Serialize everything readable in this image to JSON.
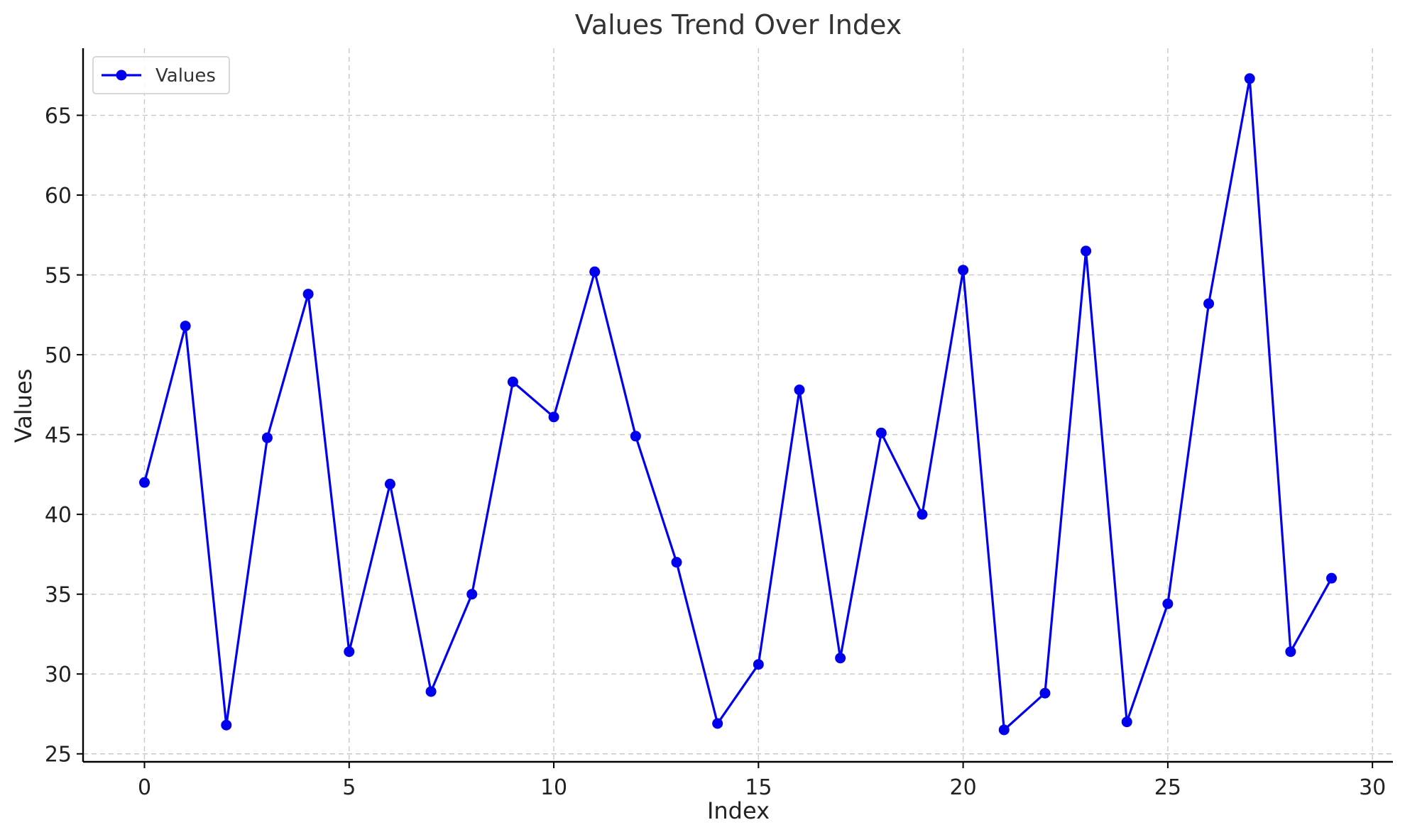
{
  "chart_data": {
    "type": "line",
    "title": "Values Trend Over Index",
    "xlabel": "Index",
    "ylabel": "Values",
    "xlim": [
      -1.5,
      30.5
    ],
    "ylim": [
      24.5,
      69.2
    ],
    "x_ticks": [
      0,
      5,
      10,
      15,
      20,
      25,
      30
    ],
    "y_ticks": [
      25,
      30,
      35,
      40,
      45,
      50,
      55,
      60,
      65
    ],
    "grid": true,
    "legend": {
      "placement": "top-left"
    },
    "series": [
      {
        "name": "Values",
        "color": "#0000ee",
        "marker": "circle",
        "x": [
          0,
          1,
          2,
          3,
          4,
          5,
          6,
          7,
          8,
          9,
          10,
          11,
          12,
          13,
          14,
          15,
          16,
          17,
          18,
          19,
          20,
          21,
          22,
          23,
          24,
          25,
          26,
          27,
          28,
          29
        ],
        "y": [
          42.0,
          51.8,
          26.8,
          44.8,
          53.8,
          31.4,
          41.9,
          28.9,
          35.0,
          48.3,
          46.1,
          55.2,
          44.9,
          37.0,
          26.9,
          30.6,
          47.8,
          31.0,
          45.1,
          40.0,
          55.3,
          26.5,
          28.8,
          56.5,
          27.0,
          34.4,
          53.2,
          67.3,
          31.4,
          36.0
        ]
      }
    ]
  }
}
